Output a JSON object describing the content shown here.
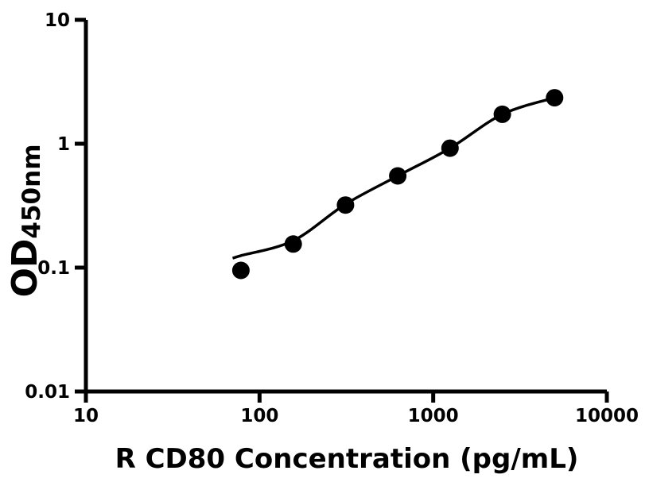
{
  "figure": {
    "background_color": "#ffffff",
    "foreground_color": "#000000"
  },
  "chart_data": {
    "type": "scatter",
    "subtype": "elisa-standard-curve",
    "title": "",
    "xlabel": "R CD80 Concentration (pg/mL)",
    "ylabel_main": "OD",
    "ylabel_subscript": "450nm",
    "x_scale": "log10",
    "y_scale": "log10",
    "xlim": [
      10,
      10000
    ],
    "ylim": [
      0.01,
      10
    ],
    "x_tick_values": [
      10,
      100,
      1000,
      10000
    ],
    "x_tick_labels": [
      "10",
      "100",
      "1000",
      "10000"
    ],
    "y_tick_values": [
      10,
      1,
      0.1,
      0.01
    ],
    "y_tick_labels": [
      "10",
      "1",
      "0.1",
      "0.01"
    ],
    "grid": false,
    "legend": null,
    "series": [
      {
        "name": "standard-points",
        "type": "scatter",
        "marker": "filled-circle",
        "color": "#000000",
        "x": [
          78.125,
          156.25,
          312.5,
          625,
          1250,
          2500,
          5000
        ],
        "y": [
          0.095,
          0.155,
          0.32,
          0.55,
          0.92,
          1.73,
          2.35
        ]
      },
      {
        "name": "fit-curve",
        "type": "line",
        "color": "#000000",
        "x": [
          70,
          78.125,
          156.25,
          312.5,
          625,
          1250,
          2500,
          5000
        ],
        "y": [
          0.119,
          0.125,
          0.165,
          0.325,
          0.55,
          0.92,
          1.73,
          2.35
        ]
      }
    ]
  }
}
